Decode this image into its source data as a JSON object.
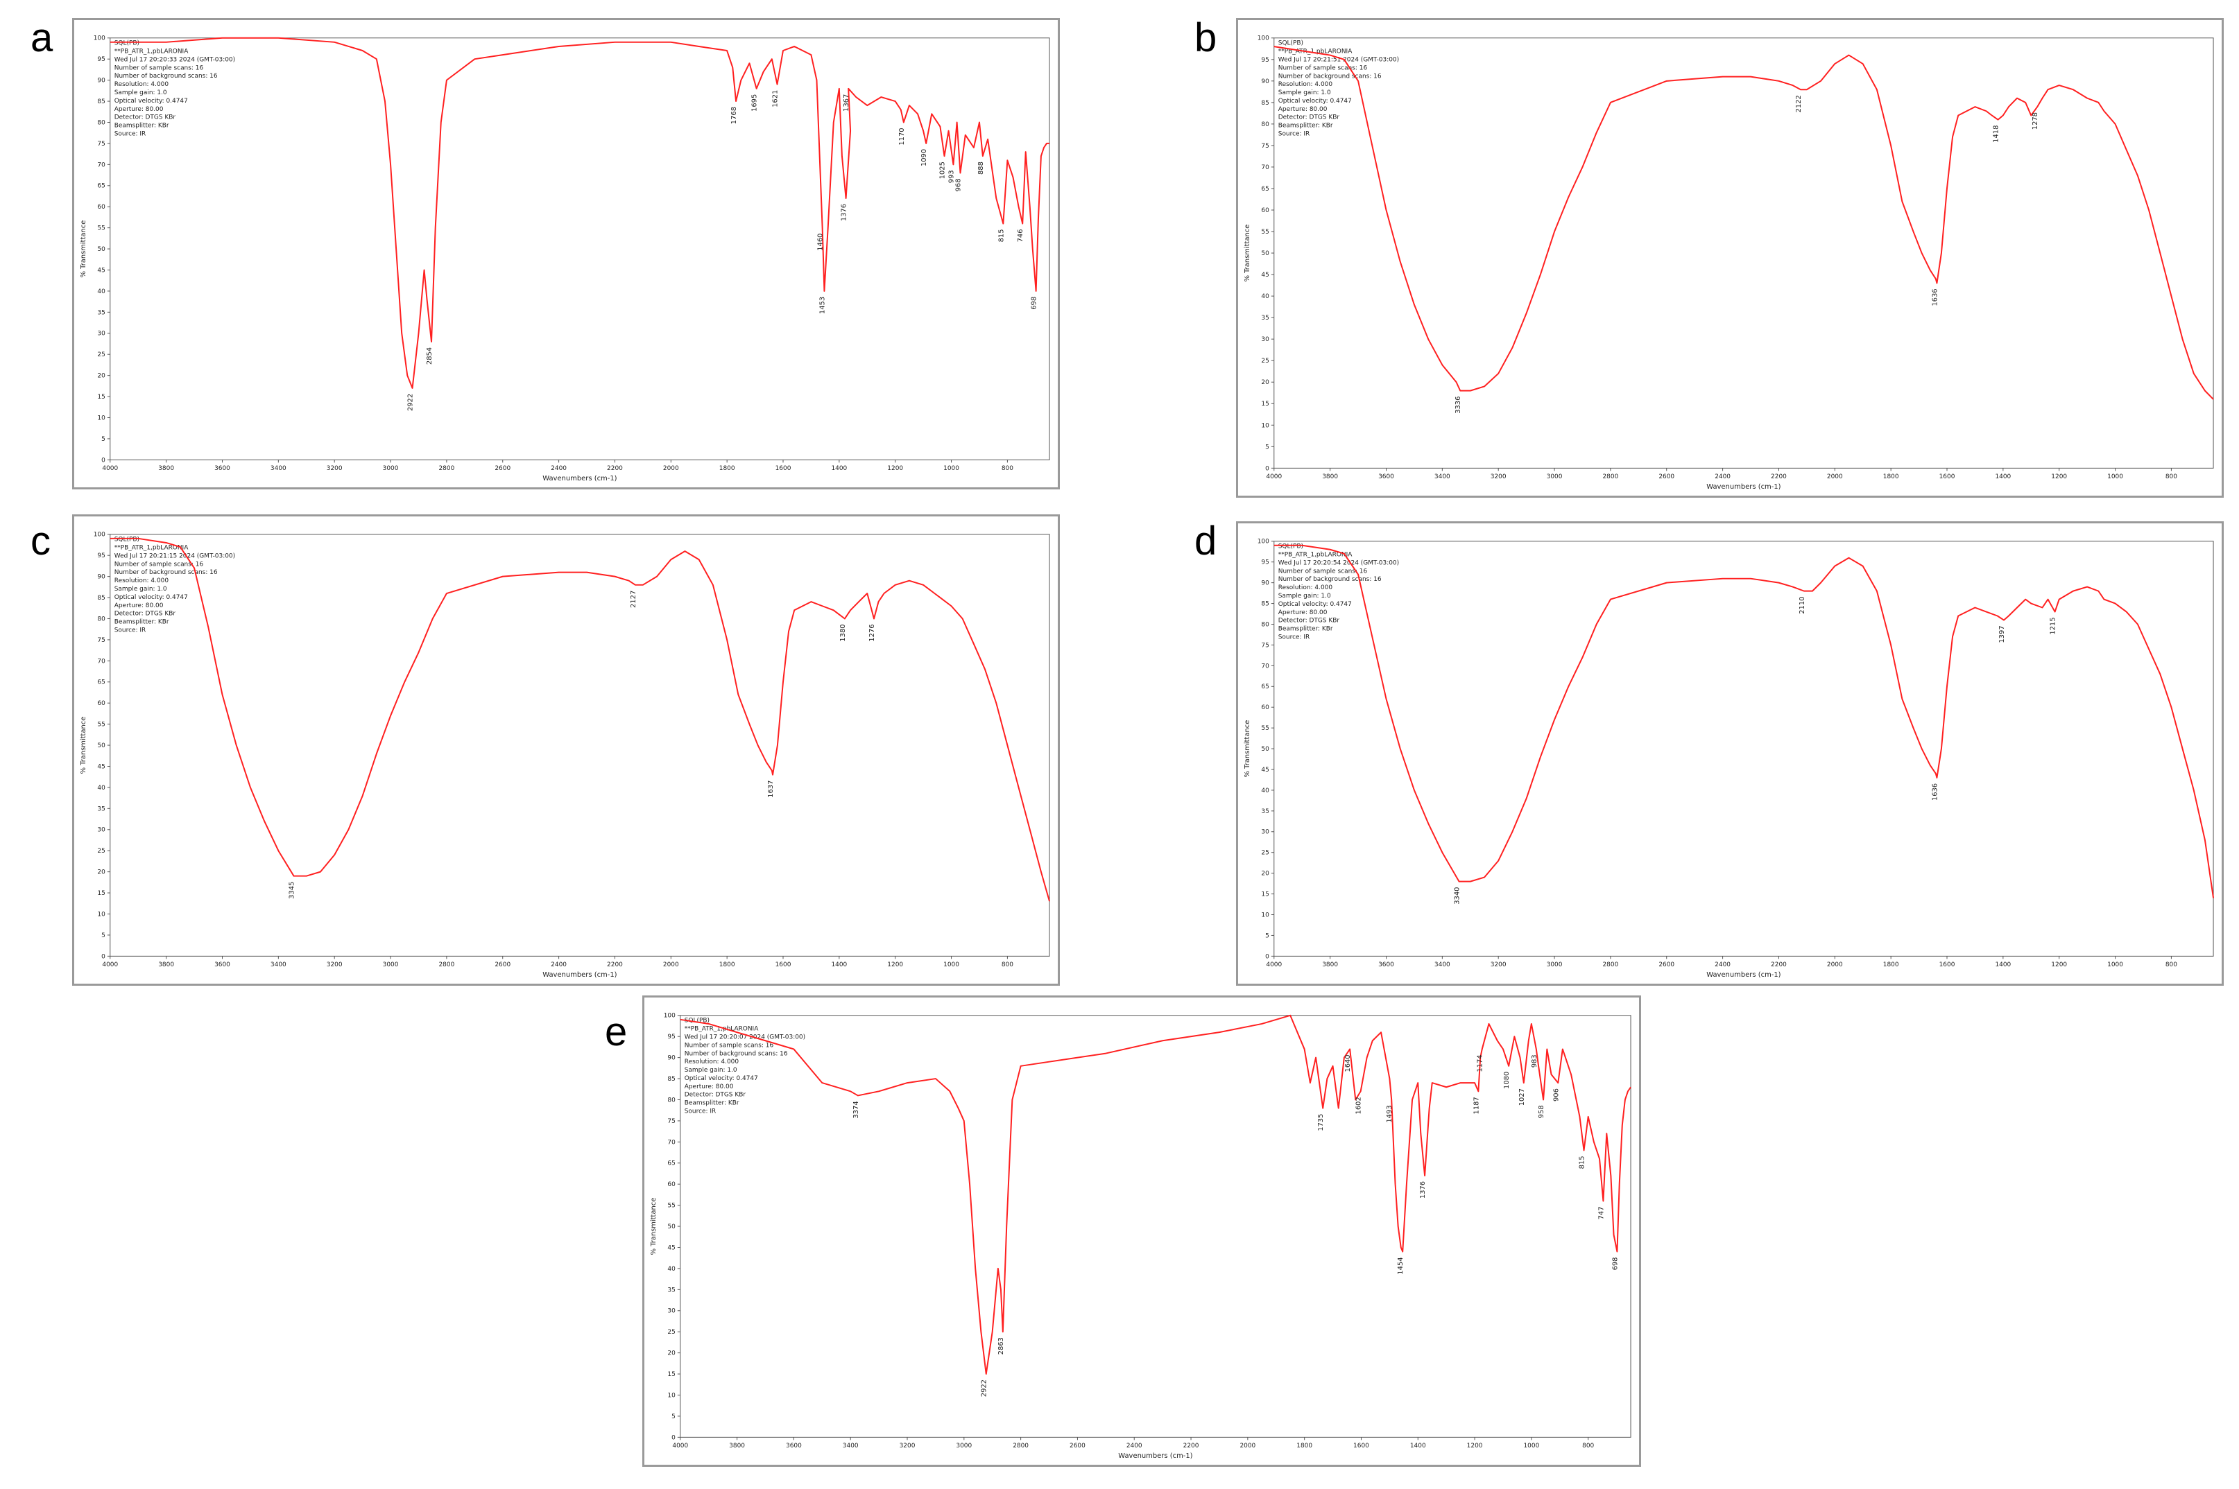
{
  "figure": {
    "panels": [
      {
        "letter": "a"
      },
      {
        "letter": "b"
      },
      {
        "letter": "c"
      },
      {
        "letter": "d"
      },
      {
        "letter": "e"
      }
    ]
  },
  "chart_data": [
    {
      "type": "line",
      "panel": "a",
      "xlabel": "Wavenumbers (cm-1)",
      "ylabel": "% Transmittance",
      "xlim": [
        4000,
        650
      ],
      "ylim": [
        0,
        100
      ],
      "x_ticks": [
        4000,
        3800,
        3600,
        3400,
        3200,
        3000,
        2800,
        2600,
        2400,
        2200,
        2000,
        1800,
        1600,
        1400,
        1200,
        1000,
        800
      ],
      "y_ticks": [
        0,
        5,
        10,
        15,
        20,
        25,
        30,
        35,
        40,
        45,
        50,
        55,
        60,
        65,
        70,
        75,
        80,
        85,
        90,
        95,
        100
      ],
      "color": "#ff2020",
      "info_text": [
        "SQL(PB)",
        "**PB_ATR_1,pbLARONIA",
        "Wed Jul 17 20:20:33 2024 (GMT-03:00)",
        "Number of sample scans: 16",
        "Number of background scans: 16",
        "Resolution: 4.000",
        "Sample gain: 1.0",
        "Optical velocity: 0.4747",
        "Aperture: 80.00",
        "Detector: DTGS KBr",
        "Beamsplitter: KBr",
        "Source: IR"
      ],
      "peak_labels": [
        "2922",
        "2854",
        "1768",
        "1695",
        "1621",
        "1460",
        "1453",
        "1376",
        "1367",
        "1170",
        "1090",
        "1025",
        "993",
        "968",
        "888",
        "815",
        "746",
        "698"
      ],
      "x": [
        4000,
        3800,
        3600,
        3400,
        3200,
        3100,
        3050,
        3020,
        3000,
        2980,
        2960,
        2940,
        2922,
        2900,
        2880,
        2870,
        2854,
        2840,
        2820,
        2800,
        2700,
        2600,
        2400,
        2200,
        2000,
        1900,
        1800,
        1780,
        1768,
        1750,
        1720,
        1695,
        1670,
        1640,
        1621,
        1600,
        1560,
        1500,
        1480,
        1460,
        1453,
        1440,
        1420,
        1400,
        1390,
        1376,
        1360,
        1367,
        1340,
        1300,
        1250,
        1200,
        1180,
        1170,
        1150,
        1120,
        1100,
        1090,
        1070,
        1040,
        1025,
        1010,
        993,
        980,
        968,
        950,
        920,
        900,
        888,
        870,
        840,
        815,
        800,
        780,
        760,
        746,
        735,
        720,
        710,
        698,
        690,
        680,
        670,
        660,
        650
      ],
      "y": [
        99,
        99,
        100,
        100,
        99,
        97,
        95,
        85,
        70,
        50,
        30,
        20,
        17,
        30,
        45,
        38,
        28,
        55,
        80,
        90,
        95,
        96,
        98,
        99,
        99,
        98,
        97,
        93,
        85,
        90,
        94,
        88,
        92,
        95,
        89,
        97,
        98,
        96,
        90,
        55,
        40,
        55,
        80,
        88,
        72,
        62,
        78,
        88,
        86,
        84,
        86,
        85,
        83,
        80,
        84,
        82,
        78,
        75,
        82,
        79,
        72,
        78,
        70,
        80,
        68,
        77,
        74,
        80,
        72,
        76,
        62,
        56,
        71,
        67,
        60,
        56,
        73,
        60,
        50,
        40,
        57,
        72,
        74,
        75,
        75
      ]
    },
    {
      "type": "line",
      "panel": "b",
      "xlabel": "Wavenumbers (cm-1)",
      "ylabel": "% Transmittance",
      "xlim": [
        4000,
        650
      ],
      "ylim": [
        0,
        100
      ],
      "x_ticks": [
        4000,
        3800,
        3600,
        3400,
        3200,
        3000,
        2800,
        2600,
        2400,
        2200,
        2000,
        1800,
        1600,
        1400,
        1200,
        1000,
        800
      ],
      "y_ticks": [
        0,
        5,
        10,
        15,
        20,
        25,
        30,
        35,
        40,
        45,
        50,
        55,
        60,
        65,
        70,
        75,
        80,
        85,
        90,
        95,
        100
      ],
      "color": "#ff2020",
      "info_text": [
        "SQL(PB)",
        "**PB_ATR_1,pbLARONIA",
        "Wed Jul 17 20:21:51 2024 (GMT-03:00)",
        "Number of sample scans: 16",
        "Number of background scans: 16",
        "Resolution: 4.000",
        "Sample gain: 1.0",
        "Optical velocity: 0.4747",
        "Aperture: 80.00",
        "Detector: DTGS KBr",
        "Beamsplitter: KBr",
        "Source: IR"
      ],
      "peak_labels": [
        "3336",
        "2122",
        "1636",
        "1418",
        "1278"
      ],
      "x": [
        4000,
        3900,
        3800,
        3750,
        3700,
        3650,
        3600,
        3550,
        3500,
        3450,
        3400,
        3350,
        3336,
        3300,
        3250,
        3200,
        3150,
        3100,
        3050,
        3000,
        2950,
        2900,
        2850,
        2800,
        2600,
        2400,
        2300,
        2200,
        2150,
        2122,
        2100,
        2050,
        2000,
        1950,
        1900,
        1850,
        1800,
        1760,
        1720,
        1690,
        1660,
        1640,
        1636,
        1620,
        1600,
        1580,
        1560,
        1500,
        1460,
        1440,
        1418,
        1400,
        1380,
        1350,
        1320,
        1300,
        1278,
        1260,
        1240,
        1200,
        1150,
        1100,
        1060,
        1040,
        1000,
        960,
        920,
        880,
        840,
        800,
        760,
        720,
        680,
        650
      ],
      "y": [
        98,
        97,
        96,
        95,
        90,
        75,
        60,
        48,
        38,
        30,
        24,
        20,
        18,
        18,
        19,
        22,
        28,
        36,
        45,
        55,
        63,
        70,
        78,
        85,
        90,
        91,
        91,
        90,
        89,
        88,
        88,
        90,
        94,
        96,
        94,
        88,
        75,
        62,
        55,
        50,
        46,
        44,
        43,
        50,
        65,
        77,
        82,
        84,
        83,
        82,
        81,
        82,
        84,
        86,
        85,
        82,
        84,
        86,
        88,
        89,
        88,
        86,
        85,
        83,
        80,
        74,
        68,
        60,
        50,
        40,
        30,
        22,
        18,
        16
      ]
    },
    {
      "type": "line",
      "panel": "c",
      "xlabel": "Wavenumbers (cm-1)",
      "ylabel": "% Transmittance",
      "xlim": [
        4000,
        650
      ],
      "ylim": [
        0,
        100
      ],
      "x_ticks": [
        4000,
        3800,
        3600,
        3400,
        3200,
        3000,
        2800,
        2600,
        2400,
        2200,
        2000,
        1800,
        1600,
        1400,
        1200,
        1000,
        800
      ],
      "y_ticks": [
        0,
        5,
        10,
        15,
        20,
        25,
        30,
        35,
        40,
        45,
        50,
        55,
        60,
        65,
        70,
        75,
        80,
        85,
        90,
        95,
        100
      ],
      "color": "#ff2020",
      "info_text": [
        "SQL(PB)",
        "**PB_ATR_1,pbLARONIA",
        "Wed Jul 17 20:21:15 2024 (GMT-03:00)",
        "Number of sample scans: 16",
        "Number of background scans: 16",
        "Resolution: 4.000",
        "Sample gain: 1.0",
        "Optical velocity: 0.4747",
        "Aperture: 80.00",
        "Detector: DTGS KBr",
        "Beamsplitter: KBr",
        "Source: IR"
      ],
      "peak_labels": [
        "3345",
        "2127",
        "1637",
        "1380",
        "1276"
      ],
      "x": [
        4000,
        3900,
        3800,
        3750,
        3700,
        3650,
        3600,
        3550,
        3500,
        3450,
        3400,
        3345,
        3300,
        3250,
        3200,
        3150,
        3100,
        3050,
        3000,
        2950,
        2900,
        2850,
        2800,
        2600,
        2400,
        2300,
        2200,
        2150,
        2127,
        2100,
        2050,
        2000,
        1950,
        1900,
        1850,
        1800,
        1760,
        1720,
        1690,
        1660,
        1640,
        1637,
        1620,
        1600,
        1580,
        1560,
        1500,
        1460,
        1420,
        1400,
        1380,
        1360,
        1330,
        1300,
        1276,
        1260,
        1240,
        1200,
        1150,
        1100,
        1060,
        1040,
        1000,
        960,
        920,
        880,
        840,
        800,
        760,
        720,
        680,
        650
      ],
      "y": [
        99,
        99,
        98,
        97,
        92,
        78,
        62,
        50,
        40,
        32,
        25,
        19,
        19,
        20,
        24,
        30,
        38,
        48,
        57,
        65,
        72,
        80,
        86,
        90,
        91,
        91,
        90,
        89,
        88,
        88,
        90,
        94,
        96,
        94,
        88,
        75,
        62,
        55,
        50,
        46,
        44,
        43,
        50,
        65,
        77,
        82,
        84,
        83,
        82,
        81,
        80,
        82,
        84,
        86,
        80,
        84,
        86,
        88,
        89,
        88,
        86,
        85,
        83,
        80,
        74,
        68,
        60,
        50,
        40,
        30,
        20,
        13
      ]
    },
    {
      "type": "line",
      "panel": "d",
      "xlabel": "Wavenumbers (cm-1)",
      "ylabel": "% Transmittance",
      "xlim": [
        4000,
        650
      ],
      "ylim": [
        0,
        100
      ],
      "x_ticks": [
        4000,
        3800,
        3600,
        3400,
        3200,
        3000,
        2800,
        2600,
        2400,
        2200,
        2000,
        1800,
        1600,
        1400,
        1200,
        1000,
        800
      ],
      "y_ticks": [
        0,
        5,
        10,
        15,
        20,
        25,
        30,
        35,
        40,
        45,
        50,
        55,
        60,
        65,
        70,
        75,
        80,
        85,
        90,
        95,
        100
      ],
      "color": "#ff2020",
      "info_text": [
        "SQL(PB)",
        "**PB_ATR_1,pbLARONIA",
        "Wed Jul 17 20:20:54 2024 (GMT-03:00)",
        "Number of sample scans: 16",
        "Number of background scans: 16",
        "Resolution: 4.000",
        "Sample gain: 1.0",
        "Optical velocity: 0.4747",
        "Aperture: 80.00",
        "Detector: DTGS KBr",
        "Beamsplitter: KBr",
        "Source: IR"
      ],
      "peak_labels": [
        "3340",
        "2110",
        "1636",
        "1397",
        "1215"
      ],
      "x": [
        4000,
        3900,
        3800,
        3750,
        3700,
        3650,
        3600,
        3550,
        3500,
        3450,
        3400,
        3340,
        3300,
        3250,
        3200,
        3150,
        3100,
        3050,
        3000,
        2950,
        2900,
        2850,
        2800,
        2600,
        2400,
        2300,
        2200,
        2150,
        2110,
        2080,
        2050,
        2000,
        1950,
        1900,
        1850,
        1800,
        1760,
        1720,
        1690,
        1660,
        1640,
        1636,
        1620,
        1600,
        1580,
        1560,
        1500,
        1460,
        1420,
        1397,
        1380,
        1350,
        1320,
        1300,
        1260,
        1240,
        1215,
        1200,
        1150,
        1100,
        1060,
        1040,
        1000,
        960,
        920,
        880,
        840,
        800,
        760,
        720,
        680,
        650
      ],
      "y": [
        99,
        99,
        98,
        97,
        92,
        77,
        62,
        50,
        40,
        32,
        25,
        18,
        18,
        19,
        23,
        30,
        38,
        48,
        57,
        65,
        72,
        80,
        86,
        90,
        91,
        91,
        90,
        89,
        88,
        88,
        90,
        94,
        96,
        94,
        88,
        75,
        62,
        55,
        50,
        46,
        44,
        43,
        50,
        65,
        77,
        82,
        84,
        83,
        82,
        81,
        82,
        84,
        86,
        85,
        84,
        86,
        83,
        86,
        88,
        89,
        88,
        86,
        85,
        83,
        80,
        74,
        68,
        60,
        50,
        40,
        28,
        14
      ]
    },
    {
      "type": "line",
      "panel": "e",
      "xlabel": "Wavenumbers (cm-1)",
      "ylabel": "% Transmittance",
      "xlim": [
        4000,
        650
      ],
      "ylim": [
        0,
        100
      ],
      "x_ticks": [
        4000,
        3800,
        3600,
        3400,
        3200,
        3000,
        2800,
        2600,
        2400,
        2200,
        2000,
        1800,
        1600,
        1400,
        1200,
        1000,
        800
      ],
      "y_ticks": [
        0,
        5,
        10,
        15,
        20,
        25,
        30,
        35,
        40,
        45,
        50,
        55,
        60,
        65,
        70,
        75,
        80,
        85,
        90,
        95,
        100
      ],
      "color": "#ff2020",
      "info_text": [
        "SQL(PB)",
        "**PB_ATR_1,pbLARONIA",
        "Wed Jul 17 20:20:07 2024 (GMT-03:00)",
        "Number of sample scans: 16",
        "Number of background scans: 16",
        "Resolution: 4.000",
        "Sample gain: 1.0",
        "Optical velocity: 0.4747",
        "Aperture: 80.00",
        "Detector: DTGS KBr",
        "Beamsplitter: KBr",
        "Source: IR"
      ],
      "peak_labels": [
        "3374",
        "2922",
        "2863",
        "1735",
        "1640",
        "1602",
        "1493",
        "1454",
        "1376",
        "1187",
        "1174",
        "1080",
        "1027",
        "983",
        "958",
        "906",
        "815",
        "747",
        "698"
      ],
      "x": [
        4000,
        3900,
        3800,
        3700,
        3600,
        3500,
        3400,
        3374,
        3300,
        3200,
        3100,
        3050,
        3020,
        3000,
        2980,
        2960,
        2940,
        2922,
        2900,
        2880,
        2870,
        2863,
        2850,
        2830,
        2800,
        2700,
        2500,
        2300,
        2100,
        1950,
        1850,
        1800,
        1780,
        1760,
        1735,
        1720,
        1700,
        1680,
        1660,
        1640,
        1620,
        1602,
        1580,
        1560,
        1530,
        1500,
        1493,
        1480,
        1470,
        1460,
        1454,
        1440,
        1420,
        1400,
        1390,
        1376,
        1360,
        1350,
        1300,
        1250,
        1200,
        1187,
        1180,
        1174,
        1150,
        1120,
        1100,
        1080,
        1060,
        1040,
        1027,
        1010,
        1000,
        983,
        975,
        958,
        945,
        930,
        906,
        890,
        860,
        830,
        815,
        800,
        780,
        760,
        747,
        735,
        720,
        710,
        698,
        690,
        680,
        670,
        660,
        650
      ],
      "y": [
        99,
        98,
        96,
        94,
        92,
        84,
        82,
        81,
        82,
        84,
        85,
        82,
        78,
        75,
        60,
        40,
        25,
        15,
        25,
        40,
        35,
        25,
        50,
        80,
        88,
        89,
        91,
        94,
        96,
        98,
        100,
        92,
        84,
        90,
        78,
        85,
        88,
        78,
        90,
        92,
        80,
        82,
        90,
        94,
        96,
        85,
        80,
        60,
        50,
        45,
        44,
        60,
        80,
        84,
        72,
        62,
        78,
        84,
        83,
        84,
        84,
        82,
        90,
        92,
        98,
        94,
        92,
        88,
        95,
        90,
        84,
        94,
        98,
        92,
        88,
        80,
        92,
        86,
        84,
        92,
        86,
        76,
        68,
        76,
        70,
        66,
        56,
        72,
        62,
        48,
        44,
        60,
        74,
        80,
        82,
        83
      ]
    }
  ]
}
